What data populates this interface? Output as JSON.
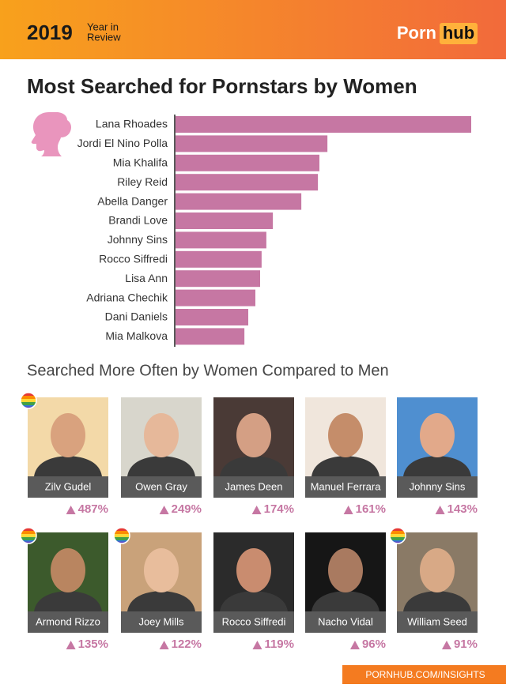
{
  "header": {
    "year": "2019",
    "year_in": "Year in",
    "review": "Review",
    "logo_left": "Porn",
    "logo_right": "hub"
  },
  "chart_data": {
    "type": "bar",
    "title": "Most Searched for Pornstars by Women",
    "categories": [
      "Lana Rhoades",
      "Jordi El Nino Polla",
      "Mia Khalifa",
      "Riley Reid",
      "Abella Danger",
      "Brandi Love",
      "Johnny Sins",
      "Rocco Siffredi",
      "Lisa Ann",
      "Adriana Chechik",
      "Dani Daniels",
      "Mia Malkova"
    ],
    "values": [
      100,
      51.5,
      48.8,
      48.3,
      42.7,
      33.1,
      30.9,
      29.3,
      28.8,
      27.2,
      24.8,
      23.5
    ],
    "xlim": [
      0,
      100
    ],
    "color": "#c677a3"
  },
  "comparison": {
    "title": "Searched More Often by Women Compared to Men",
    "items": [
      {
        "name": "Zilv Gudel",
        "change": "487%",
        "rainbow": true
      },
      {
        "name": "Owen Gray",
        "change": "249%",
        "rainbow": false
      },
      {
        "name": "James Deen",
        "change": "174%",
        "rainbow": false
      },
      {
        "name": "Manuel Ferrara",
        "change": "161%",
        "rainbow": false
      },
      {
        "name": "Johnny Sins",
        "change": "143%",
        "rainbow": false
      },
      {
        "name": "Armond Rizzo",
        "change": "135%",
        "rainbow": true
      },
      {
        "name": "Joey Mills",
        "change": "122%",
        "rainbow": true
      },
      {
        "name": "Rocco Siffredi",
        "change": "119%",
        "rainbow": false
      },
      {
        "name": "Nacho Vidal",
        "change": "96%",
        "rainbow": false
      },
      {
        "name": "William Seed",
        "change": "91%",
        "rainbow": true
      }
    ]
  },
  "footer": {
    "url": "PORNHUB.COM/INSIGHTS"
  }
}
